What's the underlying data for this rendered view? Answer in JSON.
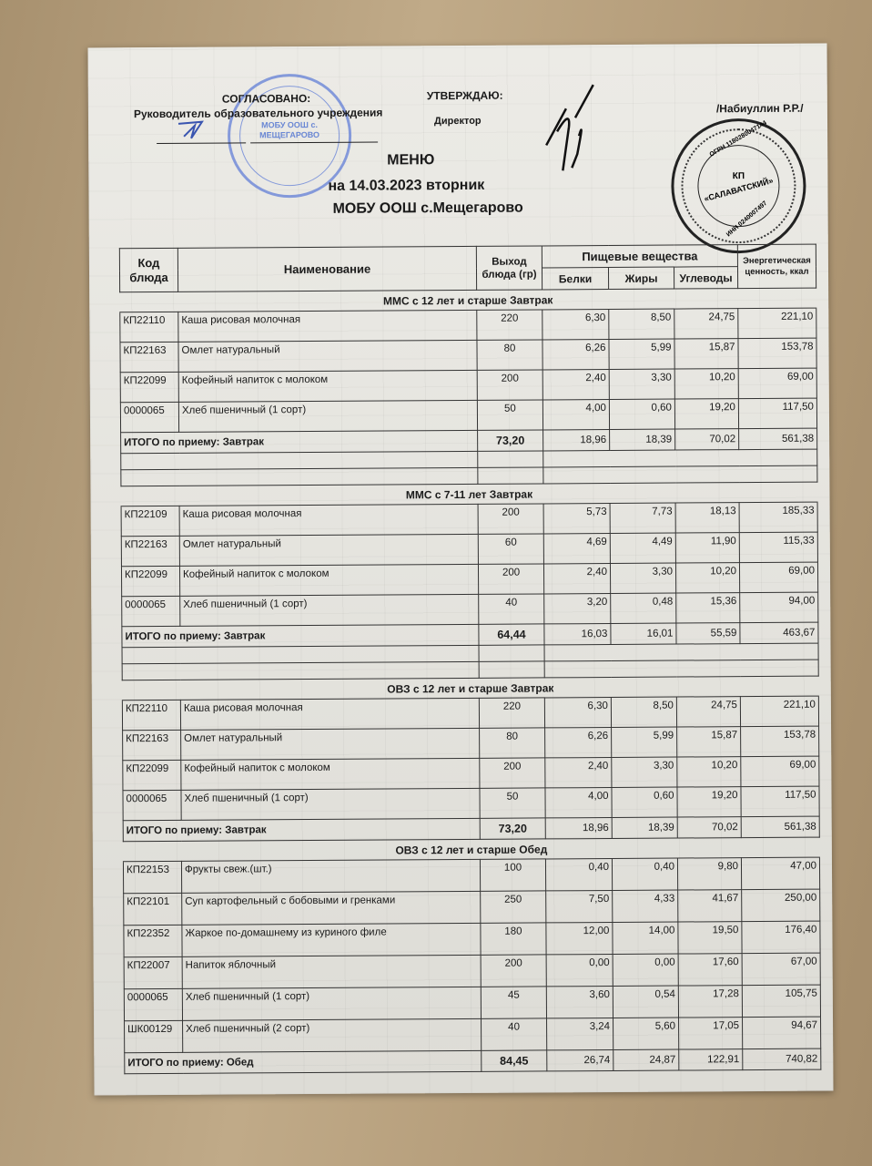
{
  "header": {
    "approved_left_title": "СОГЛАСОВАНО:",
    "approved_left_role": "Руководитель образовательного учреждения",
    "approved_right_title": "УТВЕРЖДАЮ:",
    "approved_right_role": "Директор",
    "director_name": "/Набиуллин Р.Р./",
    "doc_title": "МЕНЮ",
    "date_line": "на 14.03.2023  вторник",
    "school": "МОБУ ООШ с.Мещегарово"
  },
  "stamps": {
    "school_stamp_text": "МОБУ ООШ с. МЕЩЕГАРОВО",
    "school_stamp_color": "#4a6fd0",
    "company_stamp_line1": "КП",
    "company_stamp_line2": "«САЛАВАТСКИЙ»",
    "company_stamp_ogrn": "ОГРН 1180280047144",
    "company_stamp_inn": "ИНН 0240007497",
    "company_stamp_color": "#222222"
  },
  "table": {
    "columns": {
      "code": "Код блюда",
      "name": "Наименование",
      "output": "Выход блюда (гр)",
      "nutrients": "Пищевые вещества",
      "protein": "Белки",
      "fat": "Жиры",
      "carbs": "Углеводы",
      "energy": "Энергетическая ценность, ккал"
    },
    "sections": [
      {
        "title": "ММС с 12 лет и старше Завтрак",
        "rows": [
          [
            "КП22110",
            "Каша рисовая молочная",
            "220",
            "6,30",
            "8,50",
            "24,75",
            "221,10"
          ],
          [
            "КП22163",
            "Омлет натуральный",
            "80",
            "6,26",
            "5,99",
            "15,87",
            "153,78"
          ],
          [
            "КП22099",
            "Кофейный напиток с молоком",
            "200",
            "2,40",
            "3,30",
            "10,20",
            "69,00"
          ],
          [
            "0000065",
            "Хлеб пшеничный (1 сорт)",
            "50",
            "4,00",
            "0,60",
            "19,20",
            "117,50"
          ]
        ],
        "total": [
          "ИТОГО по приему: Завтрак",
          "73,20",
          "18,96",
          "18,39",
          "70,02",
          "561,38"
        ],
        "empty_rows": 2
      },
      {
        "title": "ММС с 7-11 лет Завтрак",
        "rows": [
          [
            "КП22109",
            "Каша рисовая молочная",
            "200",
            "5,73",
            "7,73",
            "18,13",
            "185,33"
          ],
          [
            "КП22163",
            "Омлет натуральный",
            "60",
            "4,69",
            "4,49",
            "11,90",
            "115,33"
          ],
          [
            "КП22099",
            "Кофейный напиток с молоком",
            "200",
            "2,40",
            "3,30",
            "10,20",
            "69,00"
          ],
          [
            "0000065",
            "Хлеб пшеничный (1 сорт)",
            "40",
            "3,20",
            "0,48",
            "15,36",
            "94,00"
          ]
        ],
        "total": [
          "ИТОГО по приему: Завтрак",
          "64,44",
          "16,03",
          "16,01",
          "55,59",
          "463,67"
        ],
        "empty_rows": 2
      },
      {
        "title": "ОВЗ с 12 лет и старше Завтрак",
        "rows": [
          [
            "КП22110",
            "Каша рисовая молочная",
            "220",
            "6,30",
            "8,50",
            "24,75",
            "221,10"
          ],
          [
            "КП22163",
            "Омлет натуральный",
            "80",
            "6,26",
            "5,99",
            "15,87",
            "153,78"
          ],
          [
            "КП22099",
            "Кофейный напиток с молоком",
            "200",
            "2,40",
            "3,30",
            "10,20",
            "69,00"
          ],
          [
            "0000065",
            "Хлеб пшеничный (1 сорт)",
            "50",
            "4,00",
            "0,60",
            "19,20",
            "117,50"
          ]
        ],
        "total": [
          "ИТОГО по приему: Завтрак",
          "73,20",
          "18,96",
          "18,39",
          "70,02",
          "561,38"
        ],
        "empty_rows": 0
      },
      {
        "title": "ОВЗ с 12 лет и старше Обед",
        "rows": [
          [
            "КП22153",
            "Фрукты свеж.(шт.)",
            "100",
            "0,40",
            "0,40",
            "9,80",
            "47,00"
          ],
          [
            "КП22101",
            "Суп картофельный с бобовыми и гренками",
            "250",
            "7,50",
            "4,33",
            "41,67",
            "250,00"
          ],
          [
            "КП22352",
            "Жаркое по-домашнему из куриного филе",
            "180",
            "12,00",
            "14,00",
            "19,50",
            "176,40"
          ],
          [
            "КП22007",
            "Напиток яблочный",
            "200",
            "0,00",
            "0,00",
            "17,60",
            "67,00"
          ],
          [
            "0000065",
            "Хлеб пшеничный (1 сорт)",
            "45",
            "3,60",
            "0,54",
            "17,28",
            "105,75"
          ],
          [
            "ШК00129",
            "Хлеб пшеничный (2 сорт)",
            "40",
            "3,24",
            "5,60",
            "17,05",
            "94,67"
          ]
        ],
        "total": [
          "ИТОГО по приему: Обед",
          "84,45",
          "26,74",
          "24,87",
          "122,91",
          "740,82"
        ],
        "empty_rows": 0
      }
    ]
  }
}
